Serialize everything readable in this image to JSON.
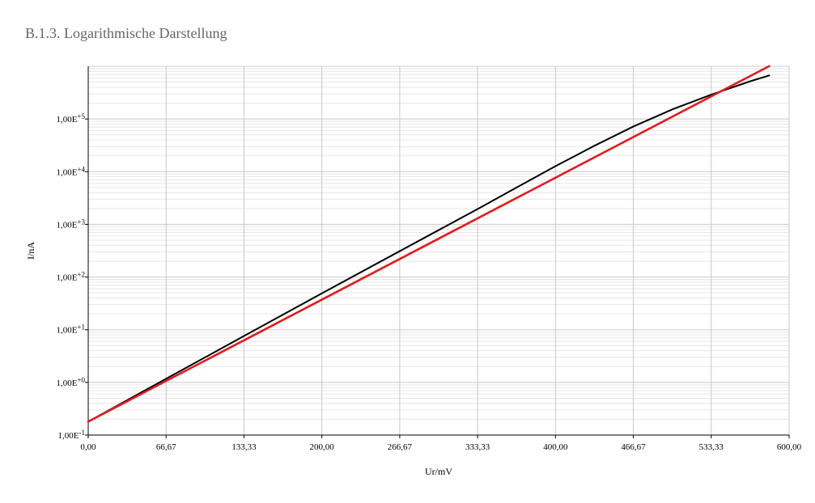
{
  "chart_data": {
    "type": "line",
    "title": "B.1.3. Logarithmische Darstellung",
    "xlabel": "Ur/mV",
    "ylabel": "I/nA",
    "xlim": [
      0,
      600
    ],
    "ylim": [
      0.1,
      1000000
    ],
    "y_scale": "log",
    "grid": true,
    "x_ticks": [
      {
        "value": 0,
        "label": "0,00"
      },
      {
        "value": 66.67,
        "label": "66,67"
      },
      {
        "value": 133.33,
        "label": "133,33"
      },
      {
        "value": 200,
        "label": "200,00"
      },
      {
        "value": 266.67,
        "label": "266,67"
      },
      {
        "value": 333.33,
        "label": "333,33"
      },
      {
        "value": 400,
        "label": "400,00"
      },
      {
        "value": 466.67,
        "label": "466,67"
      },
      {
        "value": 533.33,
        "label": "533,33"
      },
      {
        "value": 600,
        "label": "600,00"
      }
    ],
    "y_ticks": [
      {
        "value": 0.1,
        "mantissa": "1,00E",
        "exponent": "-1"
      },
      {
        "value": 1,
        "mantissa": "1,00E",
        "exponent": "+0"
      },
      {
        "value": 10,
        "mantissa": "1,00E",
        "exponent": "+1"
      },
      {
        "value": 100,
        "mantissa": "1,00E",
        "exponent": "+2"
      },
      {
        "value": 1000,
        "mantissa": "1,00E",
        "exponent": "+3"
      },
      {
        "value": 10000,
        "mantissa": "1,00E",
        "exponent": "+4"
      },
      {
        "value": 100000,
        "mantissa": "1,00E",
        "exponent": "+5"
      }
    ],
    "series": [
      {
        "color": "#000000",
        "x": [
          0,
          66.67,
          133.33,
          200,
          266.67,
          333.33,
          366.67,
          400,
          433.33,
          466.67,
          500,
          533.33,
          566.67,
          583
        ],
        "y": [
          0.18,
          1.17,
          7.6,
          49,
          310,
          1950,
          5000,
          12700,
          31000,
          72000,
          152000,
          290000,
          520000,
          670000
        ]
      },
      {
        "color": "#e31a1c",
        "x": [
          0,
          583
        ],
        "y": [
          0.18,
          1010000
        ]
      }
    ]
  }
}
